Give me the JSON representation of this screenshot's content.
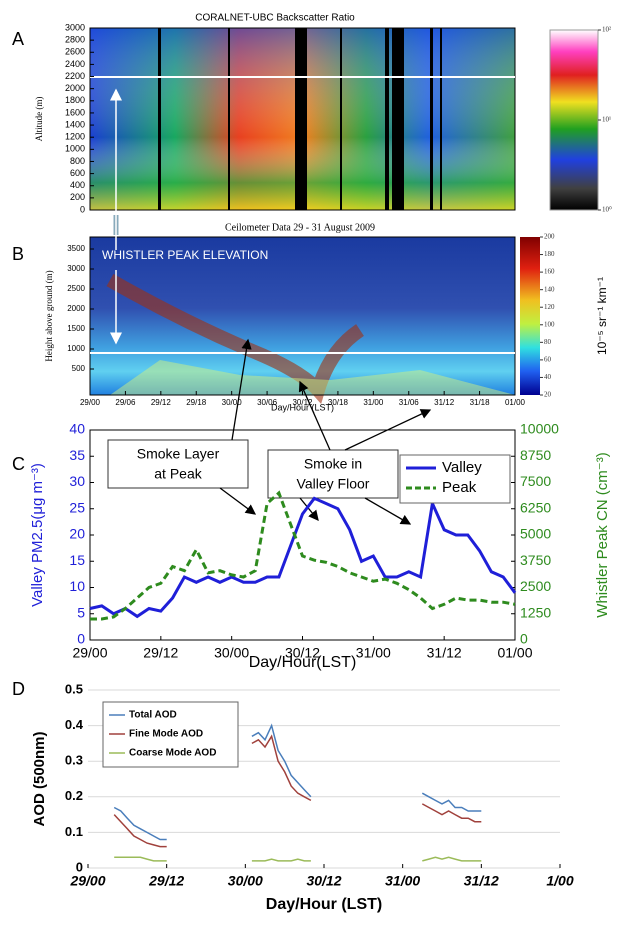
{
  "chart_data": [
    {
      "type": "heatmap",
      "panel_label": "A",
      "title": "CORALNET-UBC Backscatter Ratio",
      "ylabel": "Altitude (m)",
      "ylim": [
        0,
        3000
      ],
      "yticks": [
        0,
        200,
        400,
        600,
        800,
        1000,
        1200,
        1400,
        1600,
        1800,
        2000,
        2200,
        2400,
        2600,
        2800,
        3000
      ],
      "colorbar_log": true,
      "colorbar_lim": [
        1,
        100
      ],
      "colorbar_ticks": [
        {
          "value": 100,
          "label": "10²"
        },
        {
          "value": 10,
          "label": "10¹"
        },
        {
          "value": 1,
          "label": "10⁰"
        }
      ]
    },
    {
      "type": "heatmap",
      "panel_label": "B",
      "title": "Ceilometer Data 29 - 31 August 2009",
      "ylabel": "Height above ground (m)",
      "xlabel": "Day/Hour (LST)",
      "annotation": "WHISTLER PEAK ELEVATION",
      "ylim": [
        -150,
        3800
      ],
      "yticks": [
        500,
        1000,
        1500,
        2000,
        2500,
        3000,
        3500
      ],
      "xlim": [
        0,
        72
      ],
      "xticks": [
        {
          "value": 0,
          "label": "29/00"
        },
        {
          "value": 6,
          "label": "29/06"
        },
        {
          "value": 12,
          "label": "29/12"
        },
        {
          "value": 18,
          "label": "29/18"
        },
        {
          "value": 24,
          "label": "30/00"
        },
        {
          "value": 30,
          "label": "30/06"
        },
        {
          "value": 36,
          "label": "30/12"
        },
        {
          "value": 42,
          "label": "30/18"
        },
        {
          "value": 48,
          "label": "31/00"
        },
        {
          "value": 54,
          "label": "31/06"
        },
        {
          "value": 60,
          "label": "31/12"
        },
        {
          "value": 66,
          "label": "31/18"
        },
        {
          "value": 72,
          "label": "01/00"
        }
      ],
      "colorbar_lim": [
        20,
        200
      ],
      "colorbar_ticks": [
        20,
        40,
        60,
        80,
        100,
        120,
        140,
        160,
        180,
        200
      ],
      "colorbar_label": "10⁻⁵ sr⁻¹ km⁻¹"
    },
    {
      "type": "line",
      "panel_label": "C",
      "xlabel": "Day/Hour(LST)",
      "ylabel": "Valley PM2.5(μg m⁻³)",
      "y2label": "Whistler Peak CN (cm⁻³)",
      "xlim": [
        0,
        72
      ],
      "xticks": [
        {
          "value": 0,
          "label": "29/00"
        },
        {
          "value": 12,
          "label": "29/12"
        },
        {
          "value": 24,
          "label": "30/00"
        },
        {
          "value": 36,
          "label": "30/12"
        },
        {
          "value": 48,
          "label": "31/00"
        },
        {
          "value": 60,
          "label": "31/12"
        },
        {
          "value": 72,
          "label": "01/00"
        }
      ],
      "ylim": [
        0,
        40
      ],
      "yticks": [
        0,
        5,
        10,
        15,
        20,
        25,
        30,
        35,
        40
      ],
      "y2lim": [
        0,
        10000
      ],
      "y2ticks": [
        0,
        1250,
        2500,
        3750,
        5000,
        6250,
        7500,
        8750,
        10000
      ],
      "legend": "upper right",
      "grid": false,
      "annotations": [
        [
          "Smoke Layer",
          "at Peak"
        ],
        [
          "Smoke in",
          "Valley Floor"
        ]
      ],
      "x": [
        0,
        2,
        4,
        6,
        8,
        10,
        12,
        14,
        16,
        18,
        20,
        22,
        24,
        26,
        28,
        30,
        32,
        34,
        36,
        38,
        40,
        42,
        44,
        46,
        48,
        50,
        52,
        54,
        56,
        58,
        60,
        62,
        64,
        66,
        68,
        70,
        72
      ],
      "series": [
        {
          "name": "Valley",
          "color": "#1f1fd8",
          "dash": false,
          "values": [
            6,
            6.5,
            5,
            6,
            4.5,
            6,
            5.5,
            8,
            12,
            11,
            12,
            11,
            12,
            11,
            11,
            12,
            12,
            18,
            24,
            27,
            26,
            25,
            21,
            15,
            16,
            12,
            12,
            13,
            12,
            26,
            21,
            20,
            20,
            17,
            13,
            12,
            9
          ]
        },
        {
          "name": "Peak",
          "color": "#2e8b1e",
          "dash": true,
          "axis": "y2",
          "values": [
            1000,
            1000,
            1100,
            1500,
            2000,
            2500,
            2700,
            3500,
            3300,
            4300,
            3200,
            3300,
            3100,
            3000,
            3300,
            6500,
            7000,
            5500,
            4000,
            3800,
            3700,
            3500,
            3200,
            3000,
            2800,
            2900,
            2700,
            2400,
            2000,
            1500,
            1700,
            2000,
            1900,
            1900,
            1800,
            1800,
            1700
          ]
        }
      ]
    },
    {
      "type": "line",
      "panel_label": "D",
      "xlabel": "Day/Hour (LST)",
      "ylabel": "AOD (500nm)",
      "xlim": [
        0,
        72
      ],
      "xticks": [
        {
          "value": 0,
          "label": "29/00"
        },
        {
          "value": 12,
          "label": "29/12"
        },
        {
          "value": 24,
          "label": "30/00"
        },
        {
          "value": 36,
          "label": "30/12"
        },
        {
          "value": 48,
          "label": "31/00"
        },
        {
          "value": 60,
          "label": "31/12"
        },
        {
          "value": 72,
          "label": "1/00"
        }
      ],
      "ylim": [
        0,
        0.5
      ],
      "yticks": [
        0,
        0.1,
        0.2,
        0.3,
        0.4,
        0.5
      ],
      "grid": true,
      "legend": "upper left",
      "x": [
        4,
        5,
        6,
        7,
        8,
        9,
        10,
        11,
        12,
        18,
        25,
        26,
        27,
        28,
        29,
        30,
        31,
        32,
        33,
        34,
        42,
        51,
        52,
        53,
        54,
        55,
        56,
        57,
        58,
        59,
        60
      ],
      "series": [
        {
          "name": "Total AOD",
          "color": "#4a7ebb",
          "values": [
            0.17,
            0.16,
            0.14,
            0.12,
            0.11,
            0.1,
            0.09,
            0.08,
            0.08,
            null,
            0.37,
            0.38,
            0.36,
            0.4,
            0.33,
            0.3,
            0.26,
            0.24,
            0.22,
            0.2,
            null,
            0.21,
            0.2,
            0.19,
            0.18,
            0.19,
            0.17,
            0.17,
            0.16,
            0.16,
            0.16
          ]
        },
        {
          "name": "Fine Mode AOD",
          "color": "#a0413c",
          "values": [
            0.15,
            0.13,
            0.11,
            0.09,
            0.08,
            0.07,
            0.065,
            0.06,
            0.06,
            null,
            0.35,
            0.36,
            0.34,
            0.37,
            0.3,
            0.27,
            0.23,
            0.21,
            0.2,
            0.19,
            null,
            0.18,
            0.17,
            0.16,
            0.15,
            0.16,
            0.15,
            0.14,
            0.14,
            0.13,
            0.13
          ]
        },
        {
          "name": "Coarse Mode AOD",
          "color": "#9bbb59",
          "values": [
            0.03,
            0.03,
            0.03,
            0.03,
            0.03,
            0.025,
            0.02,
            0.02,
            0.02,
            null,
            0.02,
            0.02,
            0.02,
            0.025,
            0.02,
            0.02,
            0.02,
            0.025,
            0.02,
            0.02,
            null,
            0.02,
            0.025,
            0.03,
            0.025,
            0.03,
            0.025,
            0.02,
            0.02,
            0.02,
            0.02
          ]
        }
      ]
    }
  ]
}
